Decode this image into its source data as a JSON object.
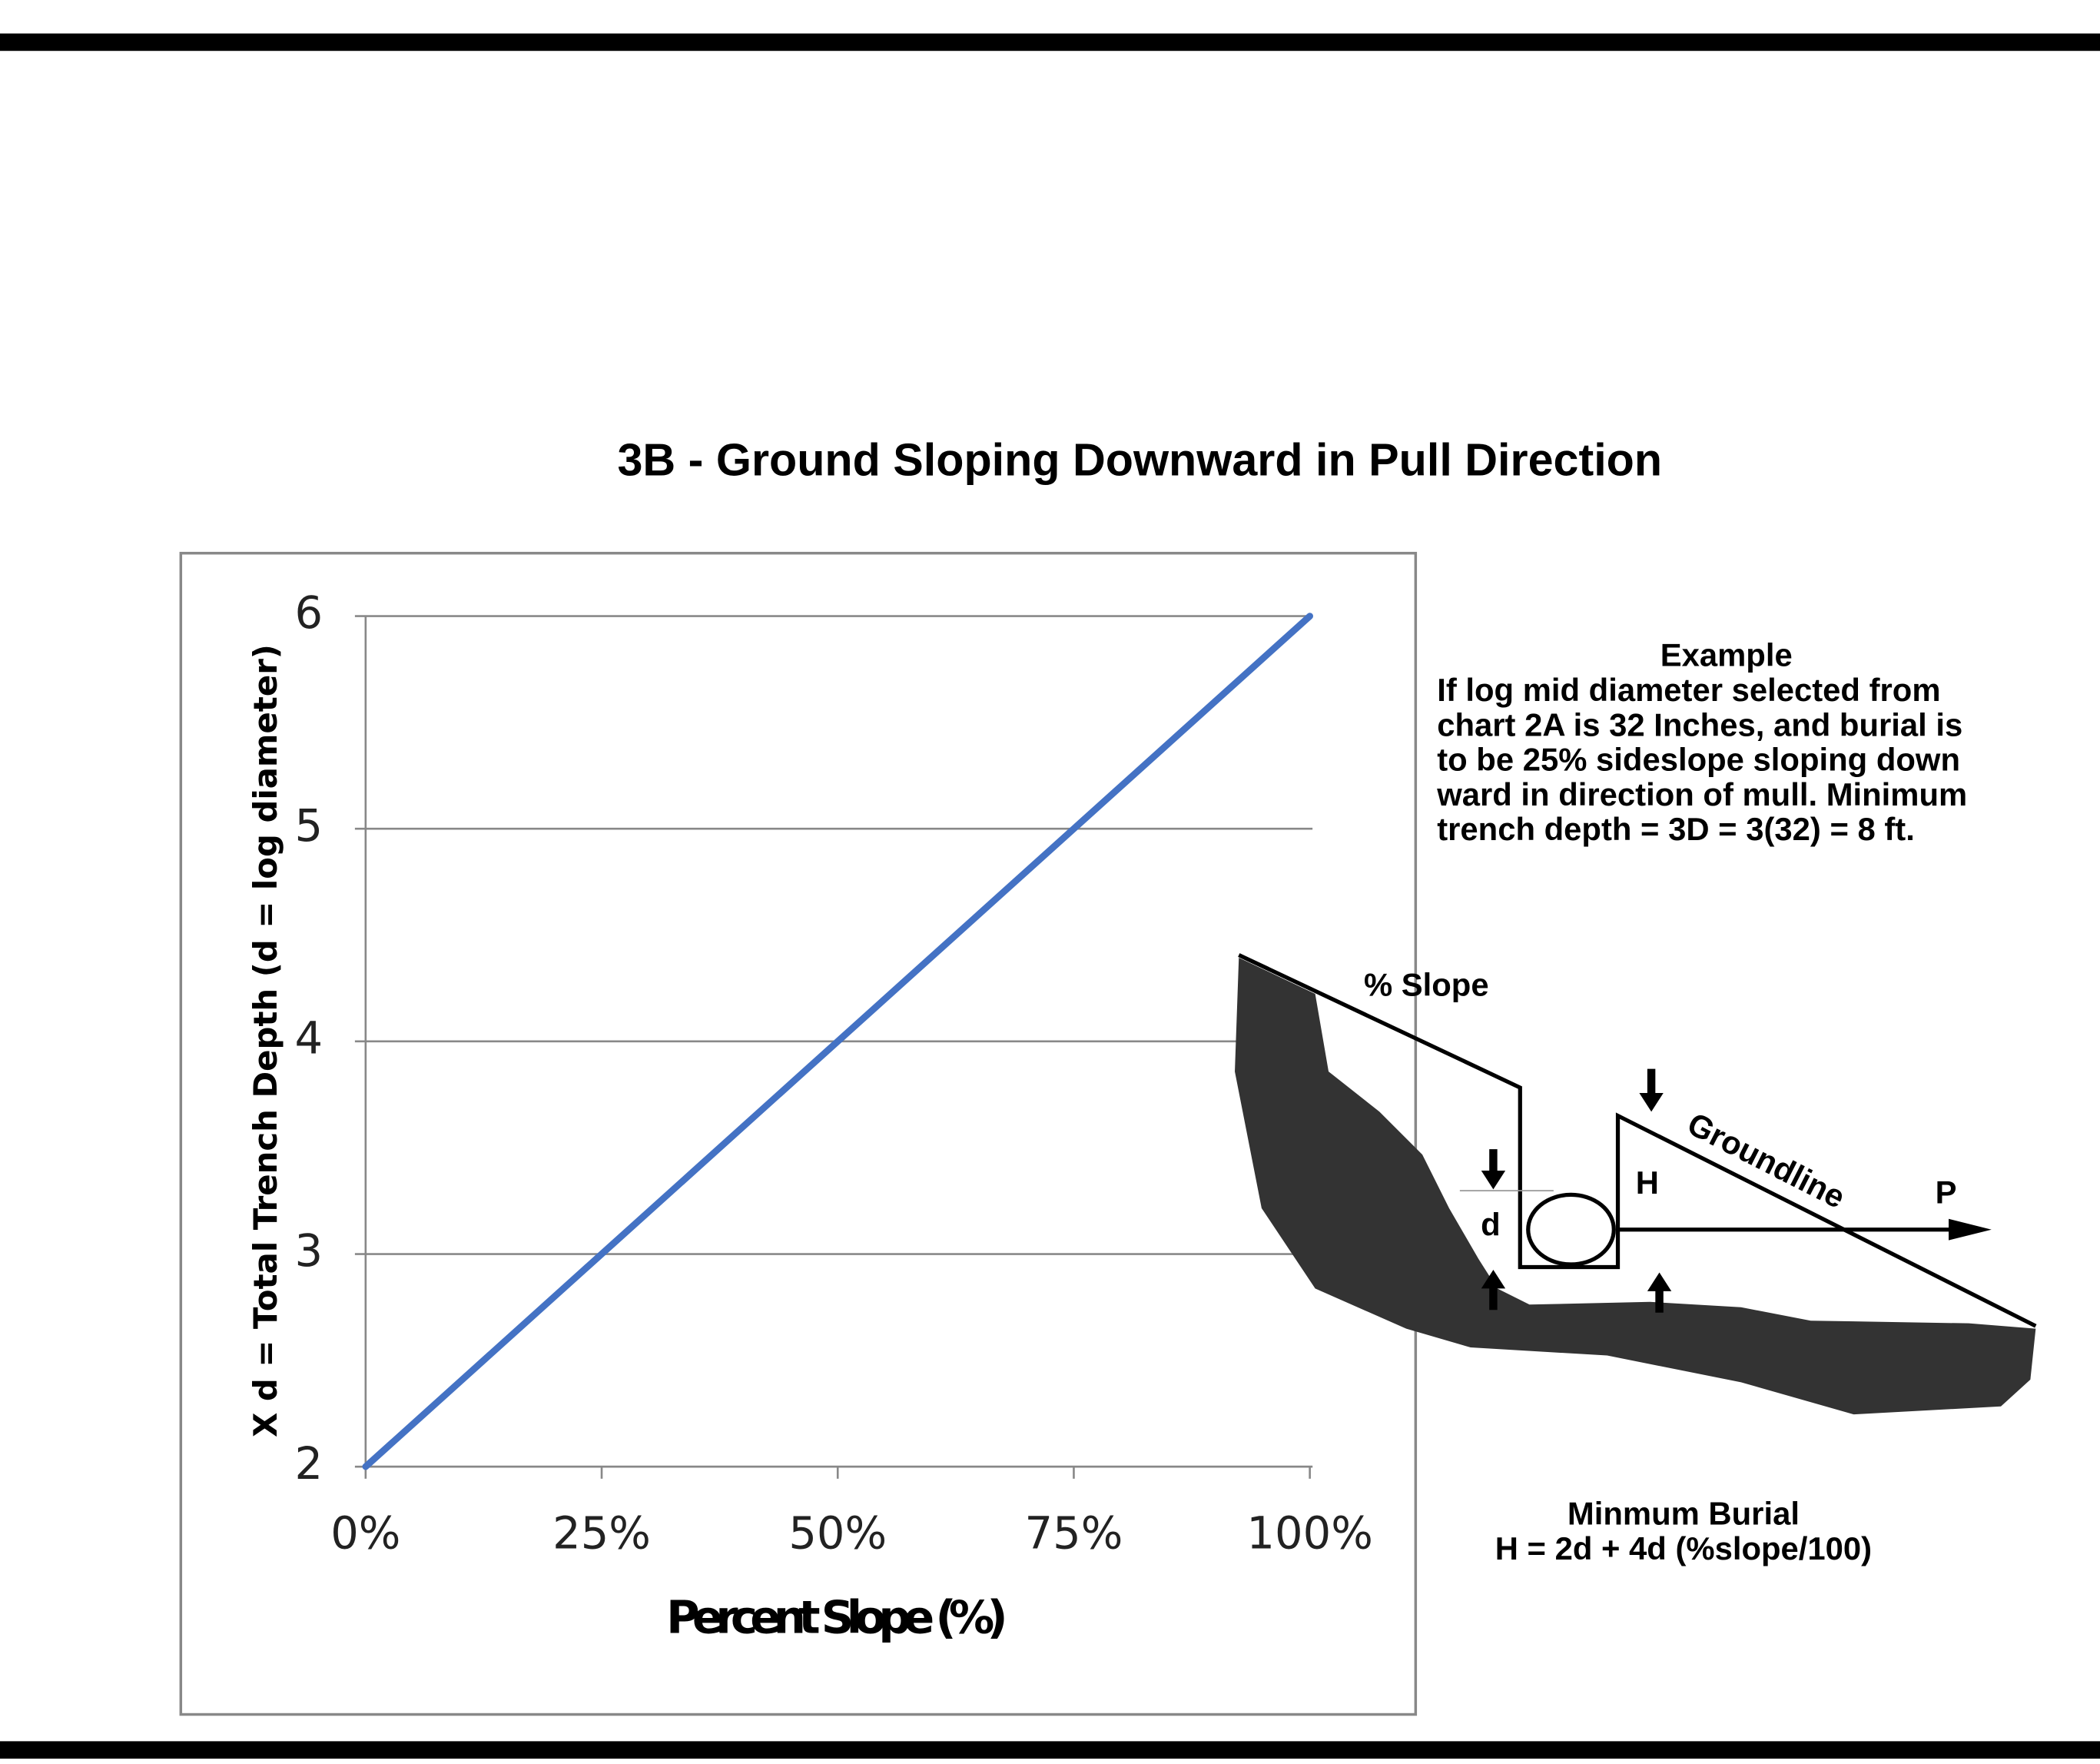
{
  "chart_data": {
    "type": "line",
    "title": "3B - Ground Sloping Downward in Pull Direction",
    "x_label": "Percent Slope (%)",
    "y_label": "X d = Total Trench Depth (d = log diameter)",
    "x": [
      0,
      25,
      50,
      75,
      100
    ],
    "series": [
      {
        "color": "#4472c4",
        "values": [
          2,
          3,
          4,
          5,
          6
        ]
      }
    ],
    "xlim": [
      0,
      100
    ],
    "xticks": [
      {
        "value": 0,
        "label": "0%"
      },
      {
        "value": 25,
        "label": "25%"
      },
      {
        "value": 50,
        "label": "50%"
      },
      {
        "value": 75,
        "label": "75%"
      },
      {
        "value": 100,
        "label": "100%"
      }
    ],
    "ylim": [
      2,
      6
    ],
    "yticks": [
      2,
      3,
      4,
      5,
      6
    ],
    "grid": true,
    "annotations": {
      "example": [
        "Example",
        "If log mid diameter  selected from",
        "chart 2A is 32 Inches, and burial is",
        "to be 25% sideslope sloping down",
        "ward in direction of mull. Minimum",
        "trench depth = 3D = 3(32) = 8 ft."
      ],
      "slope": "% Slope",
      "groundline": "Groundline",
      "h": "H",
      "d": "d",
      "p": "P",
      "burial": [
        "Minmum Burial",
        "H = 2d + 4d (%slope/100)"
      ]
    }
  }
}
